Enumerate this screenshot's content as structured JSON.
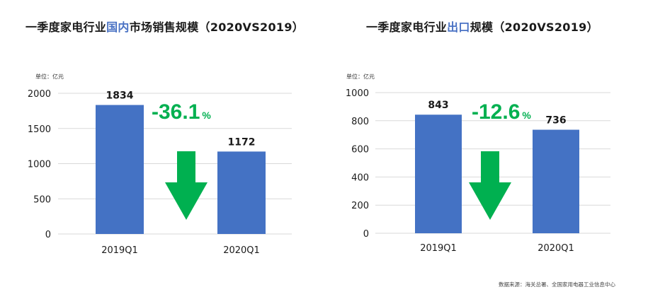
{
  "left": {
    "title_prefix": "一季度家电行业",
    "title_highlight": "国内",
    "title_suffix": "市场销售规模（2020VS2019）",
    "unit": "单位：亿元",
    "change_value": "-36.1",
    "change_unit": "%"
  },
  "right": {
    "title_prefix": "一季度家电行业",
    "title_highlight": "出口",
    "title_suffix": "规模（2020VS2019）",
    "unit": "单位：亿元",
    "change_value": "-12.6",
    "change_unit": "%"
  },
  "source": "数据来源：海关总署、全国家用电器工业信息中心",
  "colors": {
    "bar": "#4472c4",
    "arrow": "#00b050",
    "change_text": "#00b050",
    "title_highlight": "#4a72c4",
    "grid": "#d9d9d9"
  },
  "chart_data": [
    {
      "type": "bar",
      "title": "一季度家电行业国内市场销售规模（2020VS2019）",
      "categories": [
        "2019Q1",
        "2020Q1"
      ],
      "values": [
        1834,
        1172
      ],
      "ylim": [
        0,
        2000
      ],
      "yticks": [
        0,
        500,
        1000,
        1500,
        2000
      ],
      "ylabel": "单位：亿元",
      "grid": true
    },
    {
      "type": "bar",
      "title": "一季度家电行业出口规模（2020VS2019）",
      "categories": [
        "2019Q1",
        "2020Q1"
      ],
      "values": [
        843,
        736
      ],
      "ylim": [
        0,
        1000
      ],
      "yticks": [
        0,
        200,
        400,
        600,
        800,
        1000
      ],
      "ylabel": "单位：亿元",
      "grid": true
    }
  ]
}
